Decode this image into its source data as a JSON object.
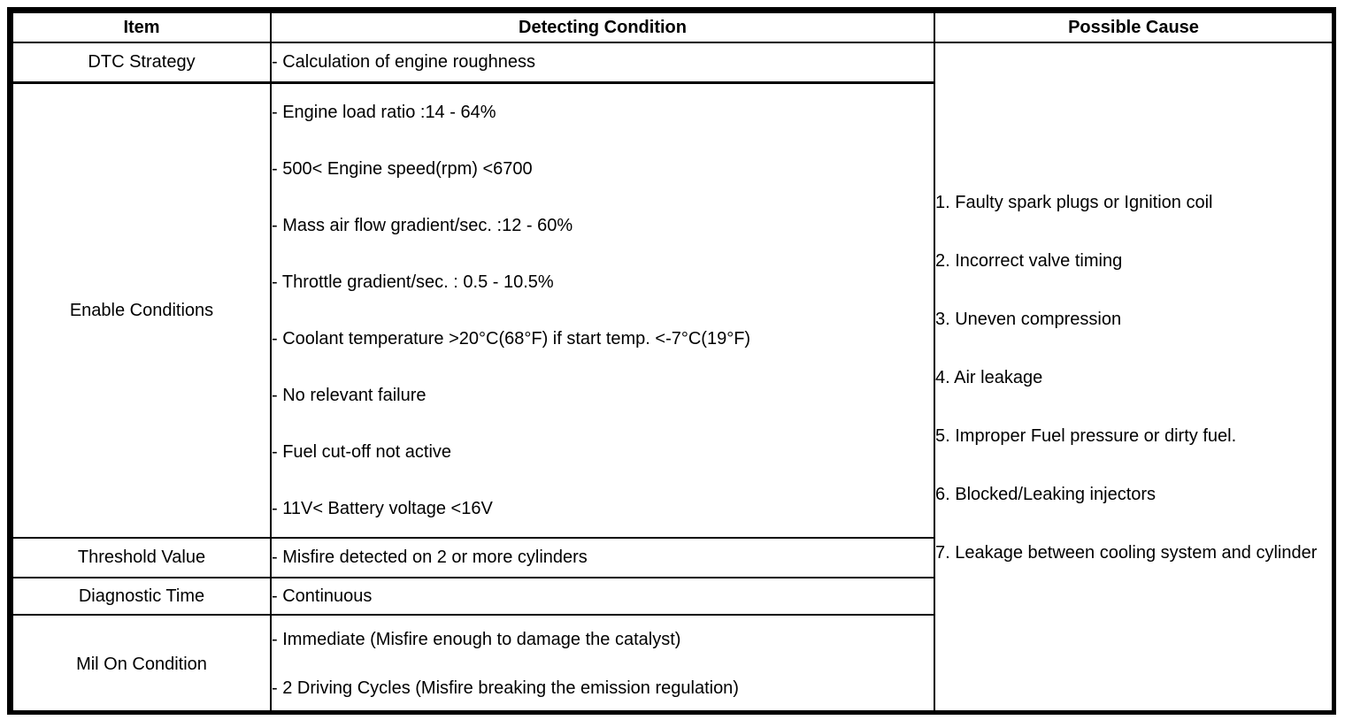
{
  "table": {
    "headers": {
      "item": "Item",
      "detecting_condition": "Detecting Condition",
      "possible_cause": "Possible Cause"
    },
    "rows": [
      {
        "item": "DTC Strategy",
        "conditions": [
          "- Calculation of engine roughness"
        ]
      },
      {
        "item": "Enable Conditions",
        "conditions": [
          "- Engine load ratio :14 - 64%",
          "- 500< Engine speed(rpm) <6700",
          "- Mass air flow gradient/sec. :12 - 60%",
          "- Throttle gradient/sec. : 0.5 - 10.5%",
          "- Coolant temperature >20°C(68°F) if start temp. <-7°C(19°F)",
          "- No relevant failure",
          "- Fuel cut-off not active",
          "- 11V< Battery voltage <16V"
        ]
      },
      {
        "item": "Threshold Value",
        "conditions": [
          "- Misfire detected on 2 or more cylinders"
        ]
      },
      {
        "item": "Diagnostic Time",
        "conditions": [
          "- Continuous"
        ]
      },
      {
        "item": "Mil On Condition",
        "conditions": [
          "- Immediate (Misfire enough to damage the catalyst)",
          "- 2 Driving Cycles (Misfire breaking the emission regulation)"
        ]
      }
    ],
    "possible_causes": [
      "1. Faulty spark plugs or Ignition coil",
      "2. Incorrect valve timing",
      "3. Uneven compression",
      "4. Air leakage",
      "5. Improper Fuel pressure or dirty fuel.",
      "6. Blocked/Leaking injectors",
      "7. Leakage between cooling system and cylinder"
    ]
  },
  "colors": {
    "border": "#000000",
    "text": "#000000",
    "background": "#ffffff"
  }
}
